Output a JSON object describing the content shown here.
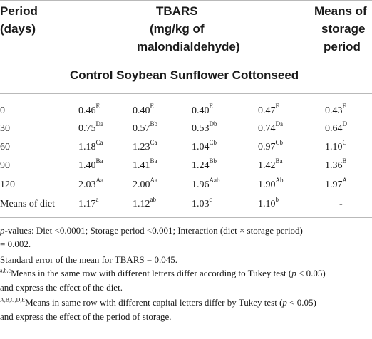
{
  "header": {
    "period_line1": "Period",
    "period_line2": "(days)",
    "tbars_line1": "TBARS",
    "tbars_line2": "(mg/kg of",
    "tbars_line3": "malondialdehyde)",
    "means_line1": "Means of",
    "means_line2": "storage",
    "means_line3": "period",
    "diets": [
      "Control",
      "Soybean",
      "Sunflower",
      "Cottonseed"
    ]
  },
  "rows": [
    {
      "period": "0",
      "cells": [
        [
          "0.46",
          "E"
        ],
        [
          "0.40",
          "E"
        ],
        [
          "0.40",
          "E"
        ],
        [
          "0.47",
          "E"
        ]
      ],
      "mean": [
        "0.43",
        "E"
      ]
    },
    {
      "period": "30",
      "cells": [
        [
          "0.75",
          "Da"
        ],
        [
          "0.57",
          "Bb"
        ],
        [
          "0.53",
          "Db"
        ],
        [
          "0.74",
          "Da"
        ]
      ],
      "mean": [
        "0.64",
        "D"
      ]
    },
    {
      "period": "60",
      "cells": [
        [
          "1.18",
          "Ca"
        ],
        [
          "1.23",
          "Ca"
        ],
        [
          "1.04",
          "Cb"
        ],
        [
          "0.97",
          "Cb"
        ]
      ],
      "mean": [
        "1.10",
        "C"
      ]
    },
    {
      "period": "90",
      "cells": [
        [
          "1.40",
          "Ba"
        ],
        [
          "1.41",
          "Ba"
        ],
        [
          "1.24",
          "Bb"
        ],
        [
          "1.42",
          "Ba"
        ]
      ],
      "mean": [
        "1.36",
        "B"
      ]
    },
    {
      "period": "120",
      "cells": [
        [
          "2.03",
          "Aa"
        ],
        [
          "2.00",
          "Aa"
        ],
        [
          "1.96",
          "Aab"
        ],
        [
          "1.90",
          "Ab"
        ]
      ],
      "mean": [
        "1.97",
        "A"
      ]
    },
    {
      "period": "Means of diet",
      "cells": [
        [
          "1.17",
          "a"
        ],
        [
          "1.12",
          "ab"
        ],
        [
          "1.03",
          "c"
        ],
        [
          "1.10",
          "b"
        ]
      ],
      "mean": [
        "-",
        ""
      ]
    }
  ],
  "footnotes": {
    "pvalues_italic": "p",
    "pvalues_line1": "-values: Diet <0.0001; Storage period <0.001; Interaction (diet × storage period)",
    "pvalues_line2": "= 0.002.",
    "sem": "Standard error of the mean for TBARS = 0.045.",
    "lower_sup": "a,b,c",
    "lower_line1a": "Means in the same row with different letters differ according to Tukey test (",
    "lower_p": "p",
    "lower_line1b": " < 0.05)",
    "lower_line2": "and express the effect of the diet.",
    "upper_sup": "A,B,C,D,E",
    "upper_line1a": "Means in same row with different capital letters differ by Tukey test (",
    "upper_p": "p",
    "upper_line1b": " < 0.05)",
    "upper_line2": "and express the effect of the period of storage."
  }
}
